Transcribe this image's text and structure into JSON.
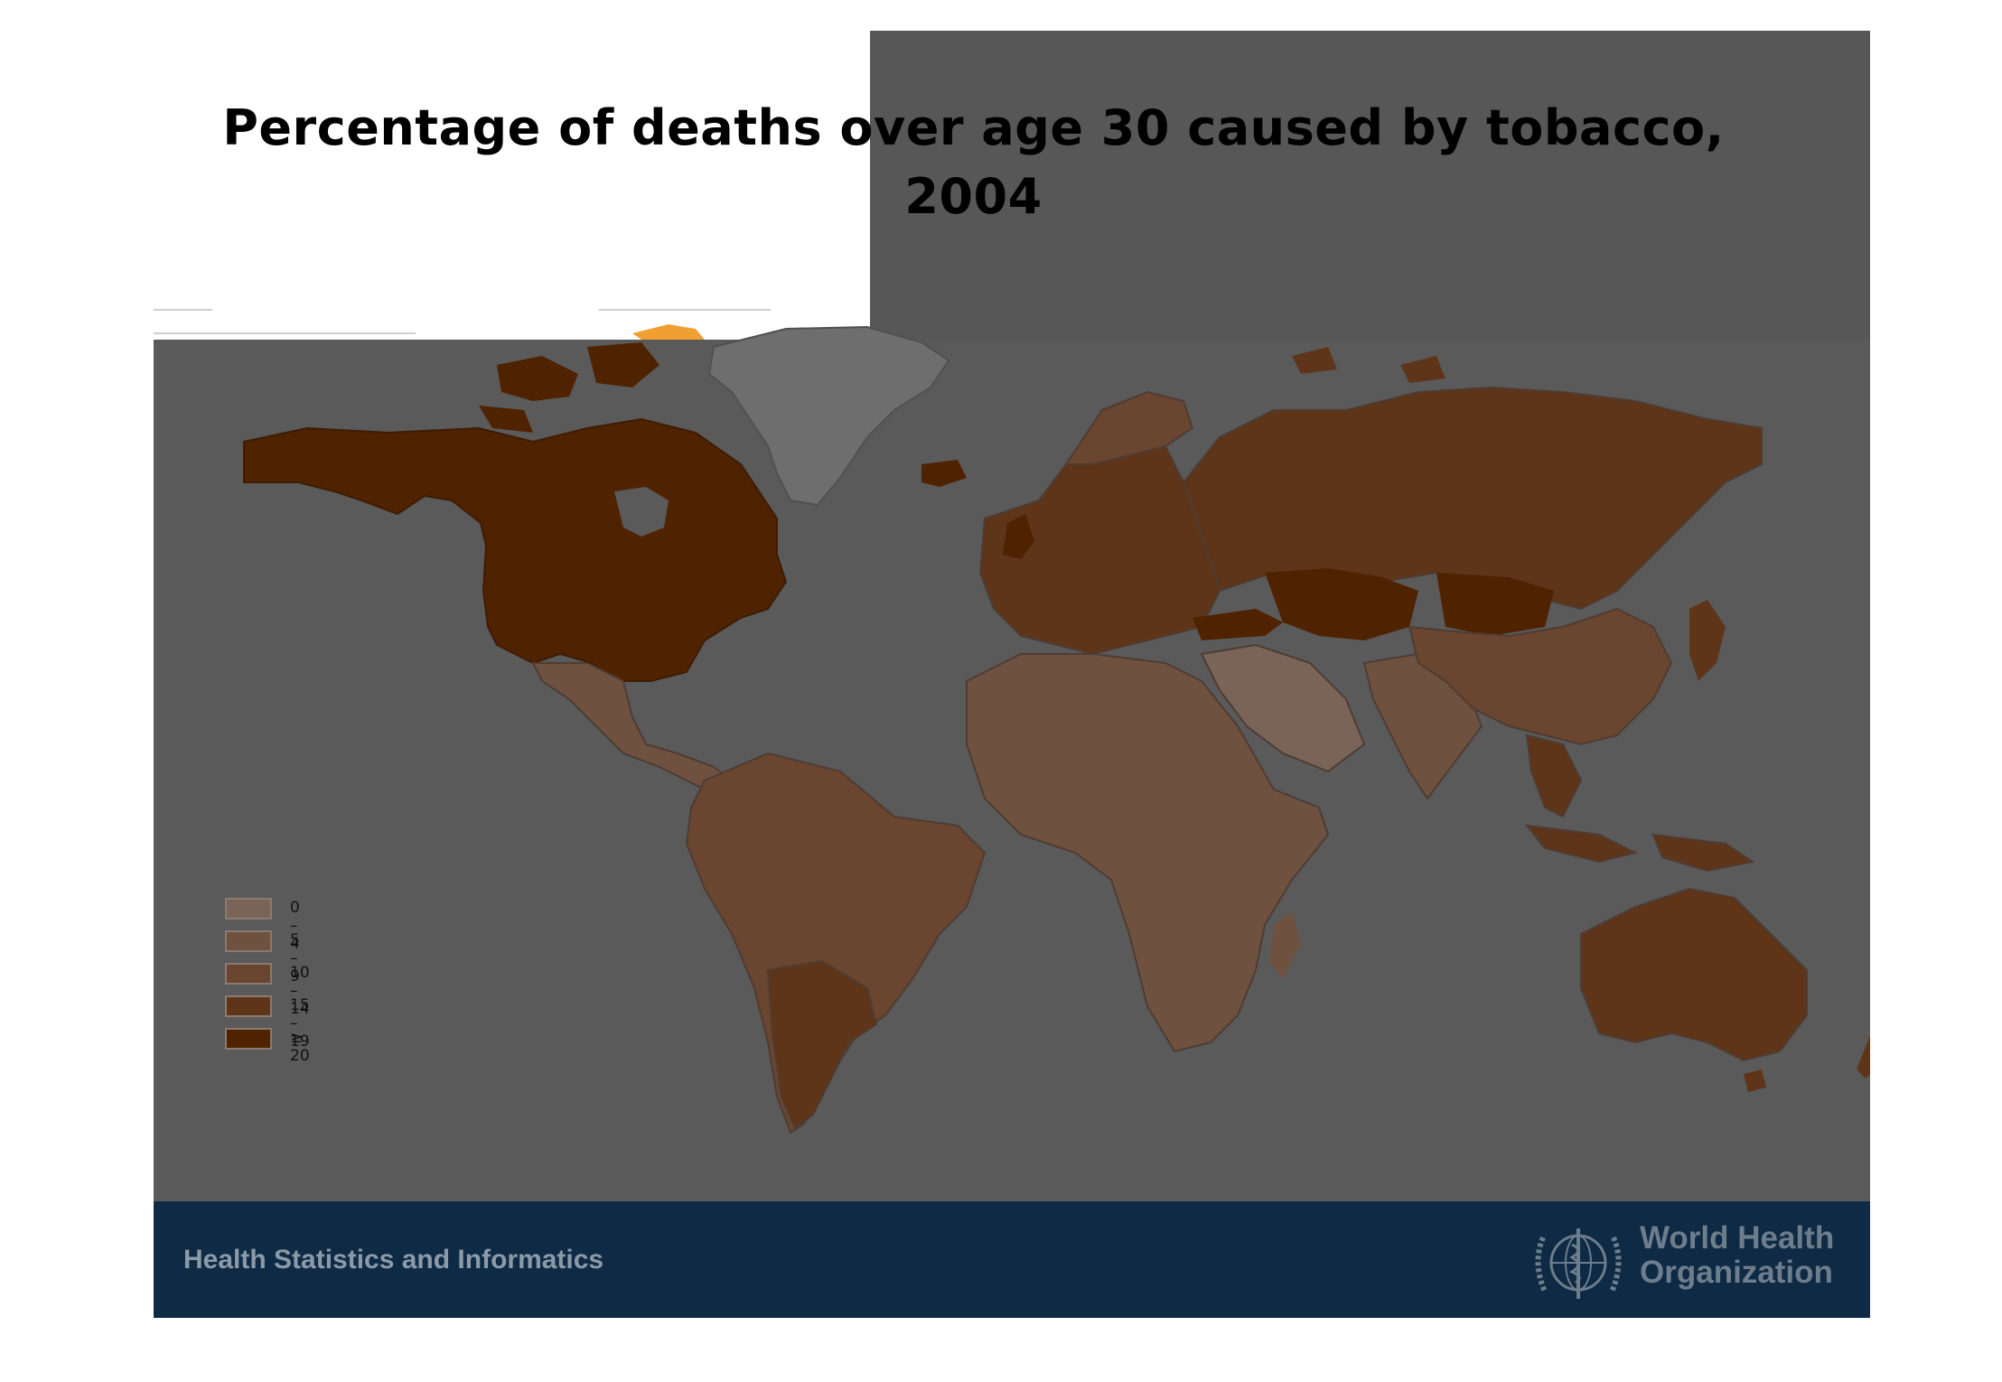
{
  "title": "Percentage of deaths over age 30 caused by tobacco, 2004",
  "footer": {
    "text": "Health Statistics and Informatics",
    "org_name_line1": "World Health",
    "org_name_line2": "Organization"
  },
  "legend": [
    {
      "label": "0 – 4",
      "color": "#7a6458"
    },
    {
      "label": "5 – 9",
      "color": "#6f5140"
    },
    {
      "label": "10 – 14",
      "color": "#6a4530"
    },
    {
      "label": "15 – 19",
      "color": "#5e3519"
    },
    {
      "label": "≥ 20",
      "color": "#4f2200"
    }
  ],
  "colors": {
    "background": "#5a5a5a",
    "footer": "#0e2a44",
    "greenland": "#6e6e6e"
  },
  "regions": [
    {
      "name": "North America",
      "class": "≥ 20"
    },
    {
      "name": "Greenland",
      "class": "no data"
    },
    {
      "name": "Central America",
      "class": "5 – 9"
    },
    {
      "name": "South America",
      "class": "10 – 14"
    },
    {
      "name": "Southern South America",
      "class": "15 – 19"
    },
    {
      "name": "Europe",
      "class": "15 – 19"
    },
    {
      "name": "Russia",
      "class": "15 – 19"
    },
    {
      "name": "Kazakhstan",
      "class": "≥ 20"
    },
    {
      "name": "Mongolia",
      "class": "≥ 20"
    },
    {
      "name": "Africa",
      "class": "5 – 9"
    },
    {
      "name": "Middle East",
      "class": "0 – 4"
    },
    {
      "name": "South Asia",
      "class": "5 – 9"
    },
    {
      "name": "China",
      "class": "10 – 14"
    },
    {
      "name": "Southeast Asia",
      "class": "15 – 19"
    },
    {
      "name": "Japan",
      "class": "15 – 19"
    },
    {
      "name": "Australia",
      "class": "15 – 19"
    },
    {
      "name": "New Zealand",
      "class": "15 – 19"
    }
  ]
}
